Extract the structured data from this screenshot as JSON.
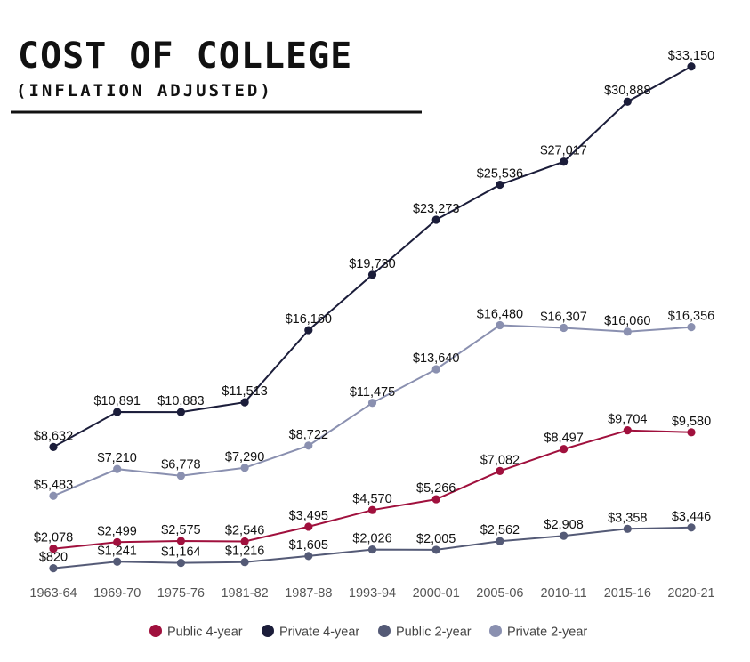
{
  "title": {
    "main": "COST OF COLLEGE",
    "sub": "(INFLATION ADJUSTED)"
  },
  "chart_data": {
    "type": "line",
    "x": [
      "1963-64",
      "1969-70",
      "1975-76",
      "1981-82",
      "1987-88",
      "1993-94",
      "2000-01",
      "2005-06",
      "2010-11",
      "2015-16",
      "2020-21"
    ],
    "grid": false,
    "legend_position": "bottom",
    "series": [
      {
        "name": "Public 4-year",
        "color": "#a0103d",
        "values": [
          2078,
          2499,
          2575,
          2546,
          3495,
          4570,
          5266,
          7082,
          8497,
          9704,
          9580
        ],
        "labels": [
          "$2,078",
          "$2,499",
          "$2,575",
          "$2,546",
          "$3,495",
          "$4,570",
          "$5,266",
          "$7,082",
          "$8,497",
          "$9,704",
          "$9,580"
        ]
      },
      {
        "name": "Private 4-year",
        "color": "#1b1d3a",
        "values": [
          8632,
          10891,
          10883,
          11513,
          16160,
          19730,
          23273,
          25536,
          27017,
          30888,
          33150
        ],
        "labels": [
          "$8,632",
          "$10,891",
          "$10,883",
          "$11,513",
          "$16,160",
          "$19,730",
          "$23,273",
          "$25,536",
          "$27,017",
          "$30,888",
          "$33,150"
        ]
      },
      {
        "name": "Public 2-year",
        "color": "#545a76",
        "values": [
          820,
          1241,
          1164,
          1216,
          1605,
          2026,
          2005,
          2562,
          2908,
          3358,
          3446
        ],
        "labels": [
          "$820",
          "$1,241",
          "$1,164",
          "$1,216",
          "$1,605",
          "$2,026",
          "$2,005",
          "$2,562",
          "$2,908",
          "$3,358",
          "$3,446"
        ]
      },
      {
        "name": "Private 2-year",
        "color": "#8a90b0",
        "values": [
          5483,
          7210,
          6778,
          7290,
          8722,
          11475,
          13640,
          16480,
          16307,
          16060,
          16356
        ],
        "labels": [
          "$5,483",
          "$7,210",
          "$6,778",
          "$7,290",
          "$8,722",
          "$11,475",
          "$13,640",
          "$16,480",
          "$16,307",
          "$16,060",
          "$16,356"
        ]
      }
    ]
  }
}
